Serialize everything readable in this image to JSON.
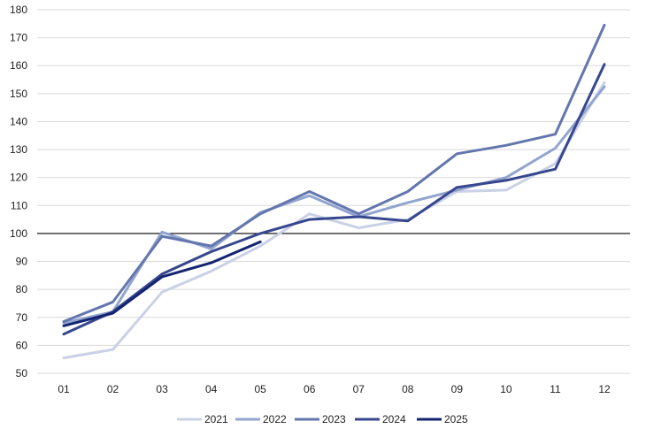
{
  "chart_data": {
    "type": "line",
    "title": "",
    "xlabel": "",
    "ylabel": "",
    "categories": [
      "01",
      "02",
      "03",
      "04",
      "05",
      "06",
      "07",
      "08",
      "09",
      "10",
      "11",
      "12"
    ],
    "ylim": [
      50,
      180
    ],
    "yticks": [
      50,
      60,
      70,
      80,
      90,
      100,
      110,
      120,
      130,
      140,
      150,
      160,
      170,
      180
    ],
    "reference_line": 100,
    "grid": true,
    "legend_position": "bottom",
    "series": [
      {
        "name": "2021",
        "color": "#c9d1e6",
        "values": [
          55.5,
          58.5,
          79,
          86.5,
          95.5,
          107,
          102,
          105,
          115,
          115.5,
          125,
          154
        ]
      },
      {
        "name": "2022",
        "color": "#92a5cf",
        "values": [
          68,
          72,
          100.5,
          94.5,
          107.5,
          113.5,
          106,
          111,
          115.5,
          120,
          130.5,
          152.5
        ]
      },
      {
        "name": "2023",
        "color": "#6376ae",
        "values": [
          68.5,
          75.5,
          99,
          95.5,
          107,
          115,
          107,
          115,
          128.5,
          131.5,
          135.5,
          174.5
        ]
      },
      {
        "name": "2024",
        "color": "#37478e",
        "values": [
          64,
          72,
          85.5,
          93.5,
          100,
          105,
          106,
          104.5,
          116.5,
          119,
          123,
          160.5
        ]
      },
      {
        "name": "2025",
        "color": "#142471",
        "values": [
          67,
          71.5,
          84.5,
          89.5,
          97,
          null,
          null,
          null,
          null,
          null,
          null,
          null
        ]
      }
    ]
  }
}
